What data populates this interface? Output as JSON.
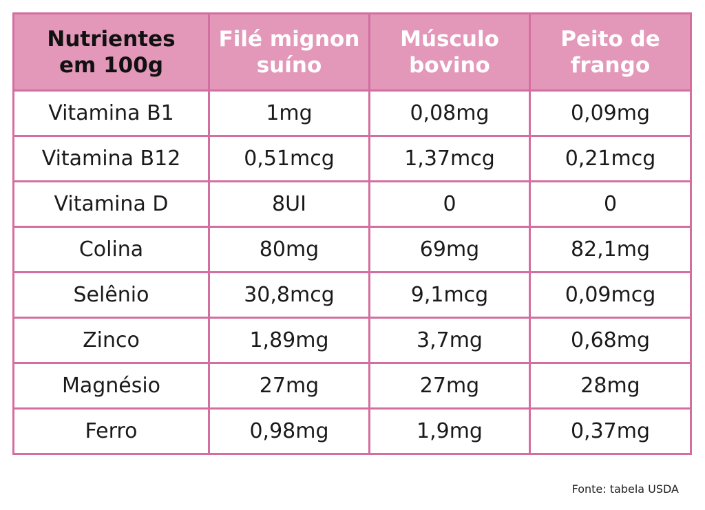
{
  "table": {
    "headers": [
      [
        "Nutrientes",
        "em 100g"
      ],
      [
        "Filé mignon",
        "suíno"
      ],
      [
        "Músculo",
        "bovino"
      ],
      [
        "Peito de",
        "frango"
      ]
    ],
    "rows": [
      [
        "Vitamina B1",
        "1mg",
        "0,08mg",
        "0,09mg"
      ],
      [
        "Vitamina B12",
        "0,51mcg",
        "1,37mcg",
        "0,21mcg"
      ],
      [
        "Vitamina D",
        "8UI",
        "0",
        "0"
      ],
      [
        "Colina",
        "80mg",
        "69mg",
        "82,1mg"
      ],
      [
        "Selênio",
        "30,8mcg",
        "9,1mcg",
        "0,09mcg"
      ],
      [
        "Zinco",
        "1,89mg",
        "3,7mg",
        "0,68mg"
      ],
      [
        "Magnésio",
        "27mg",
        "27mg",
        "28mg"
      ],
      [
        "Ferro",
        "0,98mg",
        "1,9mg",
        "0,37mg"
      ]
    ]
  },
  "source_note": "Fonte: tabela USDA",
  "colors": {
    "header_background": "#e397b9",
    "border": "#d36fa0",
    "header_text_first": "#111111",
    "header_text_other": "#ffffff"
  }
}
